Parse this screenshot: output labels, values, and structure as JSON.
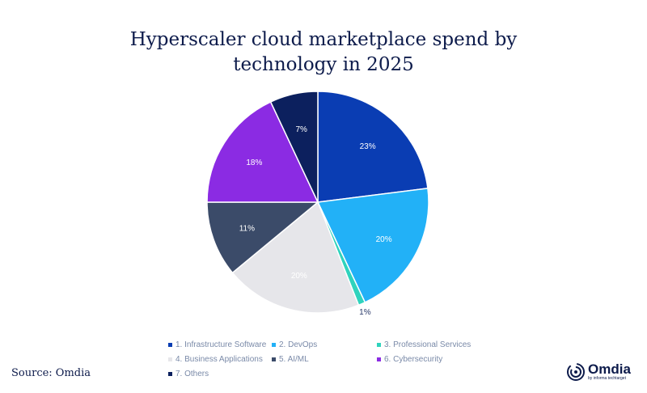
{
  "chart_data": {
    "type": "pie",
    "title": "Hyperscaler cloud marketplace spend by technology in 2025",
    "title_lines": [
      "Hyperscaler cloud marketplace spend by",
      "technology in 2025"
    ],
    "categories": [
      "1. Infrastructure Software",
      "2. DevOps",
      "3. Professional Services",
      "4. Business Applications",
      "5. AI/ML",
      "6. Cybersecurity",
      "7. Others"
    ],
    "values": [
      23,
      20,
      1,
      20,
      11,
      18,
      7
    ],
    "labels": [
      "23%",
      "20%",
      "1%",
      "20%",
      "11%",
      "18%",
      "7%"
    ],
    "colors": [
      "#0a3db3",
      "#22b1f7",
      "#2fd3bd",
      "#e6e6ea",
      "#3b4b69",
      "#8b2be3",
      "#0c205e"
    ],
    "label_colors": [
      "#ffffff",
      "#ffffff",
      "#2a3a6a",
      "#ffffff",
      "#ffffff",
      "#ffffff",
      "#ffffff"
    ],
    "legend_position": "bottom"
  },
  "source": "Source: Omdia",
  "logo": {
    "name": "Omdia",
    "tagline": "by informa techtarget"
  }
}
